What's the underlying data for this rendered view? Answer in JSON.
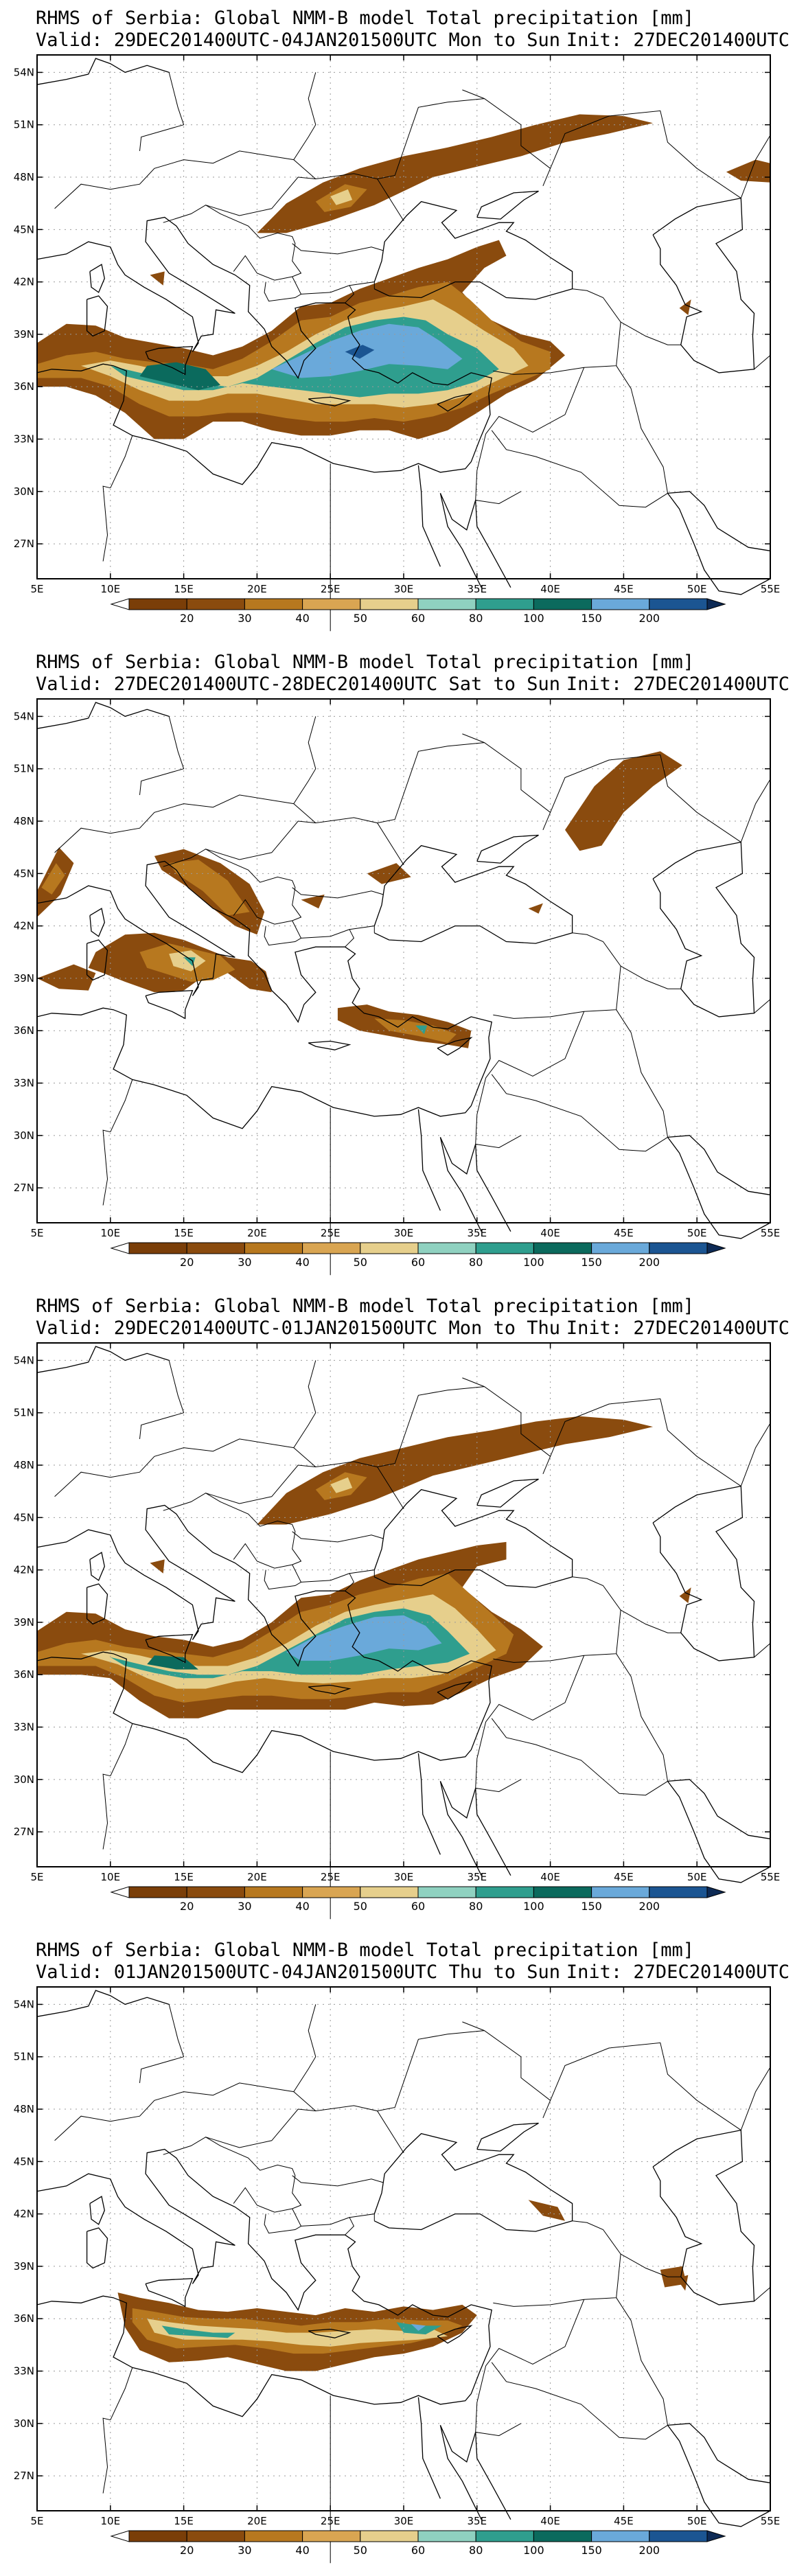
{
  "colors": {
    "c20": "#8a4b0e",
    "c30": "#b7781f",
    "c40": "#d9a552",
    "c50": "#e6cf8c",
    "c60": "#8fd1c0",
    "c80": "#2f9e8e",
    "c100": "#0b6a5d",
    "c150": "#6aa9da",
    "c200": "#1b5592",
    "low": "#ffffff",
    "high": "#0d2a55"
  },
  "axes": {
    "lon_ticks": [
      "5E",
      "10E",
      "15E",
      "20E",
      "25E",
      "30E",
      "35E",
      "40E",
      "45E",
      "50E",
      "55E"
    ],
    "lat_ticks": [
      "54N",
      "51N",
      "48N",
      "45N",
      "42N",
      "39N",
      "36N",
      "33N",
      "30N",
      "27N"
    ],
    "lon_range": [
      5,
      55
    ],
    "lat_range": [
      25,
      55
    ]
  },
  "colorbar": {
    "levels": [
      "20",
      "30",
      "40",
      "50",
      "60",
      "80",
      "100",
      "150",
      "200"
    ]
  },
  "panels": [
    {
      "title": "RHMS of Serbia: Global NMM-B model Total precipitation [mm]",
      "valid": "Valid: 29DEC201400UTC-04JAN201500UTC Mon to Sun",
      "init": "Init: 27DEC201400UTC"
    },
    {
      "title": "RHMS of Serbia: Global NMM-B model Total precipitation [mm]",
      "valid": "Valid: 27DEC201400UTC-28DEC201400UTC Sat to Sun",
      "init": "Init: 27DEC201400UTC"
    },
    {
      "title": "RHMS of Serbia: Global NMM-B model Total precipitation [mm]",
      "valid": "Valid: 29DEC201400UTC-01JAN201500UTC Mon to Thu",
      "init": "Init: 27DEC201400UTC"
    },
    {
      "title": "RHMS of Serbia: Global NMM-B model Total precipitation [mm]",
      "valid": "Valid: 01JAN201500UTC-04JAN201500UTC Thu to Sun",
      "init": "Init: 27DEC201400UTC"
    }
  ]
}
